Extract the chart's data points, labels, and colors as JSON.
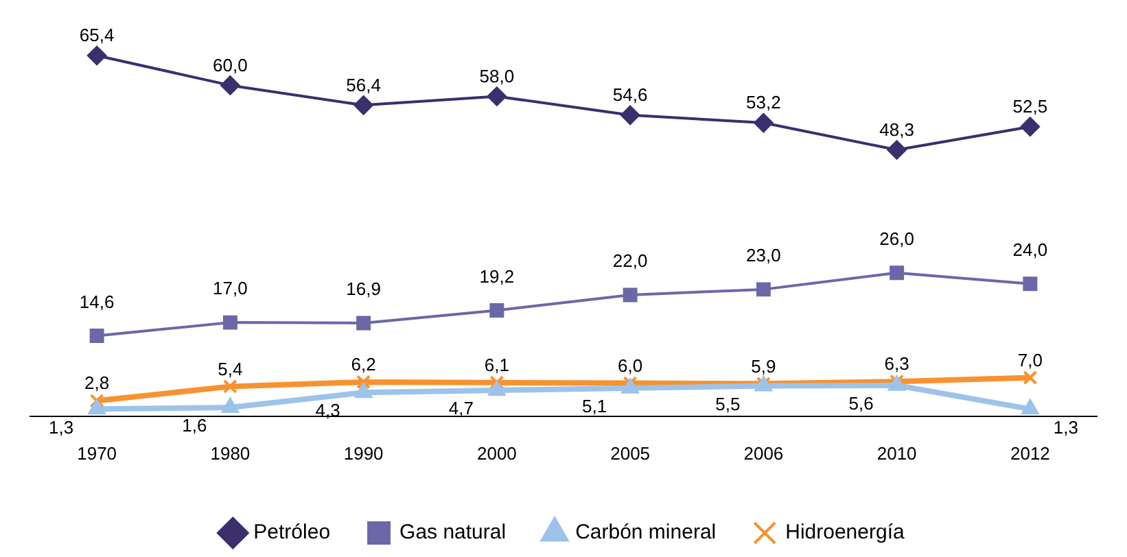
{
  "chart_data": {
    "type": "line",
    "categories": [
      "1970",
      "1980",
      "1990",
      "2000",
      "2005",
      "2006",
      "2010",
      "2012"
    ],
    "legend": "bottom",
    "grid": false,
    "line_style": "solid",
    "series": [
      {
        "name": "Petróleo",
        "color": "#3b2f6e",
        "marker": "diamond",
        "values": [
          65.4,
          60.0,
          56.4,
          58.0,
          54.6,
          53.2,
          48.3,
          52.5
        ],
        "value_labels": [
          "65,4",
          "60,0",
          "56,4",
          "58,0",
          "54,6",
          "53,2",
          "48,3",
          "52,5"
        ]
      },
      {
        "name": "Gas natural",
        "color": "#6b68a8",
        "marker": "square",
        "values": [
          14.6,
          17.0,
          16.9,
          19.2,
          22.0,
          23.0,
          26.0,
          24.0
        ],
        "value_labels": [
          "14,6",
          "17,0",
          "16,9",
          "19,2",
          "22,0",
          "23,0",
          "26,0",
          "24,0"
        ]
      },
      {
        "name": "Carbón mineral",
        "color": "#9dc3ea",
        "marker": "triangle",
        "values": [
          1.3,
          1.6,
          4.3,
          4.7,
          5.1,
          5.5,
          5.6,
          1.3
        ],
        "value_labels": [
          "1,3",
          "1,6",
          "4,3",
          "4,7",
          "5,1",
          "5,5",
          "5,6",
          "1,3"
        ]
      },
      {
        "name": "Hidroenergía",
        "color": "#f7922f",
        "marker": "cross",
        "values": [
          2.8,
          5.4,
          6.2,
          6.1,
          6.0,
          5.9,
          6.3,
          7.0
        ],
        "value_labels": [
          "2,8",
          "5,4",
          "6,2",
          "6,1",
          "6,0",
          "5,9",
          "6,3",
          "7,0"
        ]
      }
    ]
  }
}
